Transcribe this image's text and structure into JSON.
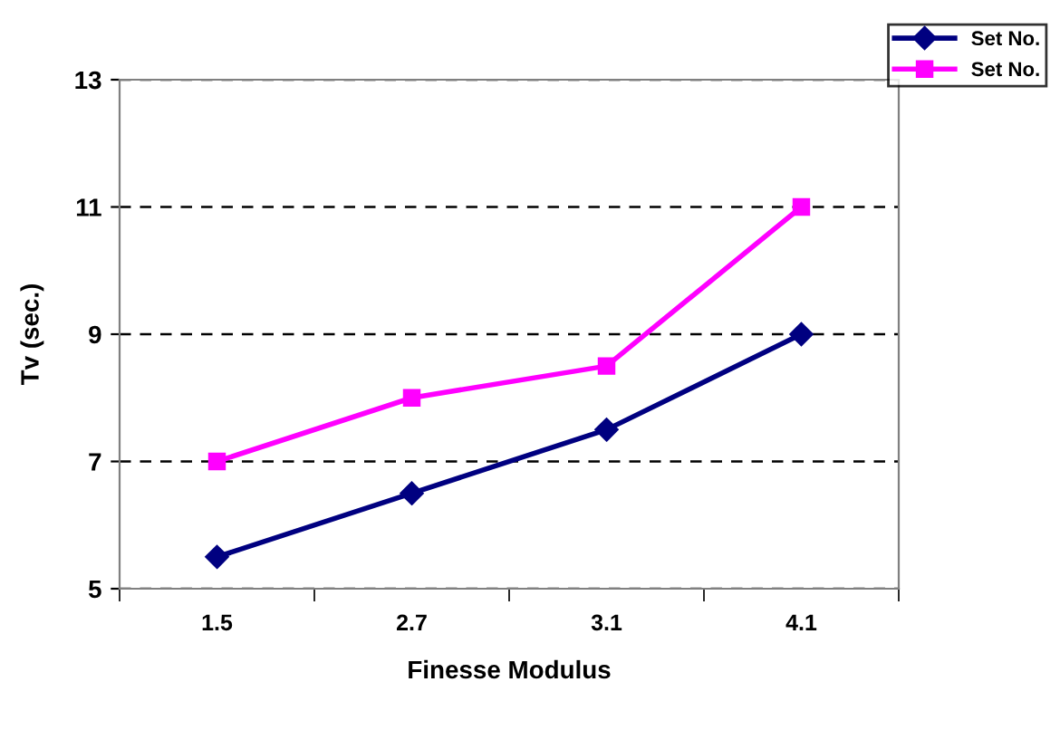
{
  "chart_data": {
    "type": "line",
    "xlabel": "Finesse Modulus",
    "ylabel": "Tv (sec.)",
    "categories": [
      "1.5",
      "2.7",
      "3.1",
      "4.1"
    ],
    "series": [
      {
        "name": "Set No.",
        "color": "#000080",
        "values": [
          5.5,
          6.5,
          7.5,
          9
        ],
        "marker": "diamond"
      },
      {
        "name": "Set No.",
        "color": "#ff00ff",
        "values": [
          7,
          8,
          8.5,
          11
        ],
        "marker": "square"
      }
    ],
    "ylim": [
      5,
      13
    ],
    "yticks": [
      5,
      7,
      9,
      11,
      13
    ],
    "grid": "y",
    "legend": "top right",
    "line_style": "solid"
  }
}
